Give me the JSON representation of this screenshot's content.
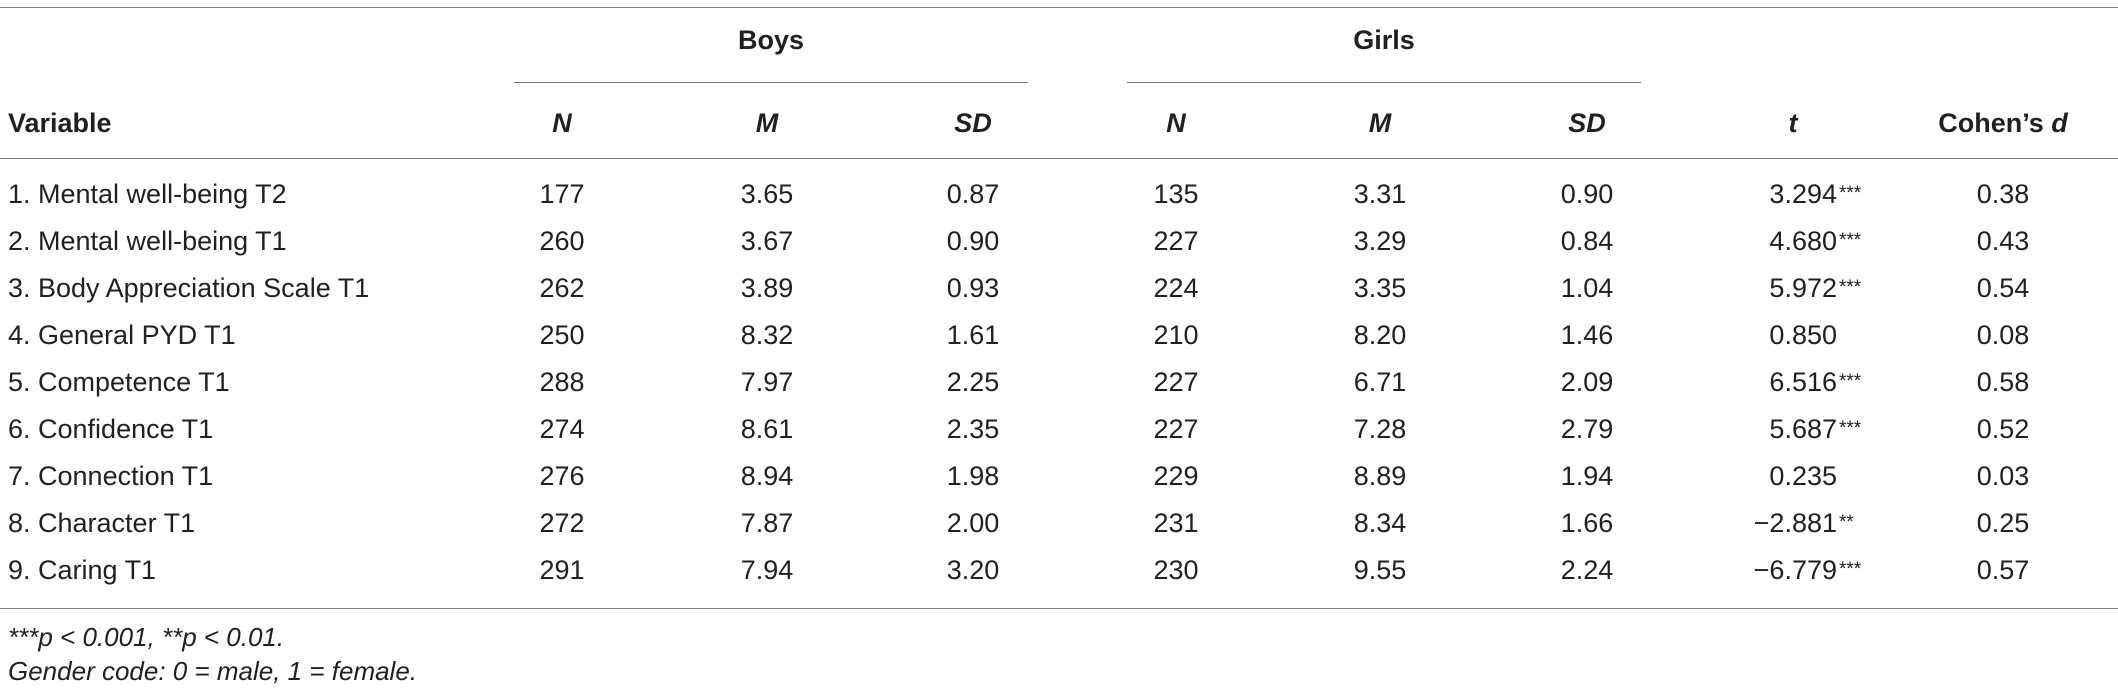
{
  "table": {
    "group_headers": {
      "boys": "Boys",
      "girls": "Girls"
    },
    "columns": {
      "variable": "Variable",
      "boys_n": "N",
      "boys_m": "M",
      "boys_sd": "SD",
      "girls_n": "N",
      "girls_m": "M",
      "girls_sd": "SD",
      "t": "t",
      "cohens_d_prefix": "Cohen’s ",
      "cohens_d_symbol": "d"
    },
    "rows": [
      {
        "variable": "1. Mental well-being T2",
        "boys_n": "177",
        "boys_m": "3.65",
        "boys_sd": "0.87",
        "girls_n": "135",
        "girls_m": "3.31",
        "girls_sd": "0.90",
        "t": "3.294",
        "t_sig": "***",
        "d": "0.38"
      },
      {
        "variable": "2. Mental well-being T1",
        "boys_n": "260",
        "boys_m": "3.67",
        "boys_sd": "0.90",
        "girls_n": "227",
        "girls_m": "3.29",
        "girls_sd": "0.84",
        "t": "4.680",
        "t_sig": "***",
        "d": "0.43"
      },
      {
        "variable": "3. Body Appreciation Scale T1",
        "boys_n": "262",
        "boys_m": "3.89",
        "boys_sd": "0.93",
        "girls_n": "224",
        "girls_m": "3.35",
        "girls_sd": "1.04",
        "t": "5.972",
        "t_sig": "***",
        "d": "0.54"
      },
      {
        "variable": "4. General PYD T1",
        "boys_n": "250",
        "boys_m": "8.32",
        "boys_sd": "1.61",
        "girls_n": "210",
        "girls_m": "8.20",
        "girls_sd": "1.46",
        "t": "0.850",
        "t_sig": "",
        "d": "0.08"
      },
      {
        "variable": "5. Competence T1",
        "boys_n": "288",
        "boys_m": "7.97",
        "boys_sd": "2.25",
        "girls_n": "227",
        "girls_m": "6.71",
        "girls_sd": "2.09",
        "t": "6.516",
        "t_sig": "***",
        "d": "0.58"
      },
      {
        "variable": "6. Confidence T1",
        "boys_n": "274",
        "boys_m": "8.61",
        "boys_sd": "2.35",
        "girls_n": "227",
        "girls_m": "7.28",
        "girls_sd": "2.79",
        "t": "5.687",
        "t_sig": "***",
        "d": "0.52"
      },
      {
        "variable": "7. Connection T1",
        "boys_n": "276",
        "boys_m": "8.94",
        "boys_sd": "1.98",
        "girls_n": "229",
        "girls_m": "8.89",
        "girls_sd": "1.94",
        "t": "0.235",
        "t_sig": "",
        "d": "0.03"
      },
      {
        "variable": "8. Character T1",
        "boys_n": "272",
        "boys_m": "7.87",
        "boys_sd": "2.00",
        "girls_n": "231",
        "girls_m": "8.34",
        "girls_sd": "1.66",
        "t": "−2.881",
        "t_sig": "**",
        "d": "0.25"
      },
      {
        "variable": "9. Caring T1",
        "boys_n": "291",
        "boys_m": "7.94",
        "boys_sd": "3.20",
        "girls_n": "230",
        "girls_m": "9.55",
        "girls_sd": "2.24",
        "t": "−6.779",
        "t_sig": "***",
        "d": "0.57"
      }
    ]
  },
  "notes": {
    "significance": "***p < 0.001, **p < 0.01.",
    "gender_code": "Gender code: 0 = male, 1 = female."
  }
}
